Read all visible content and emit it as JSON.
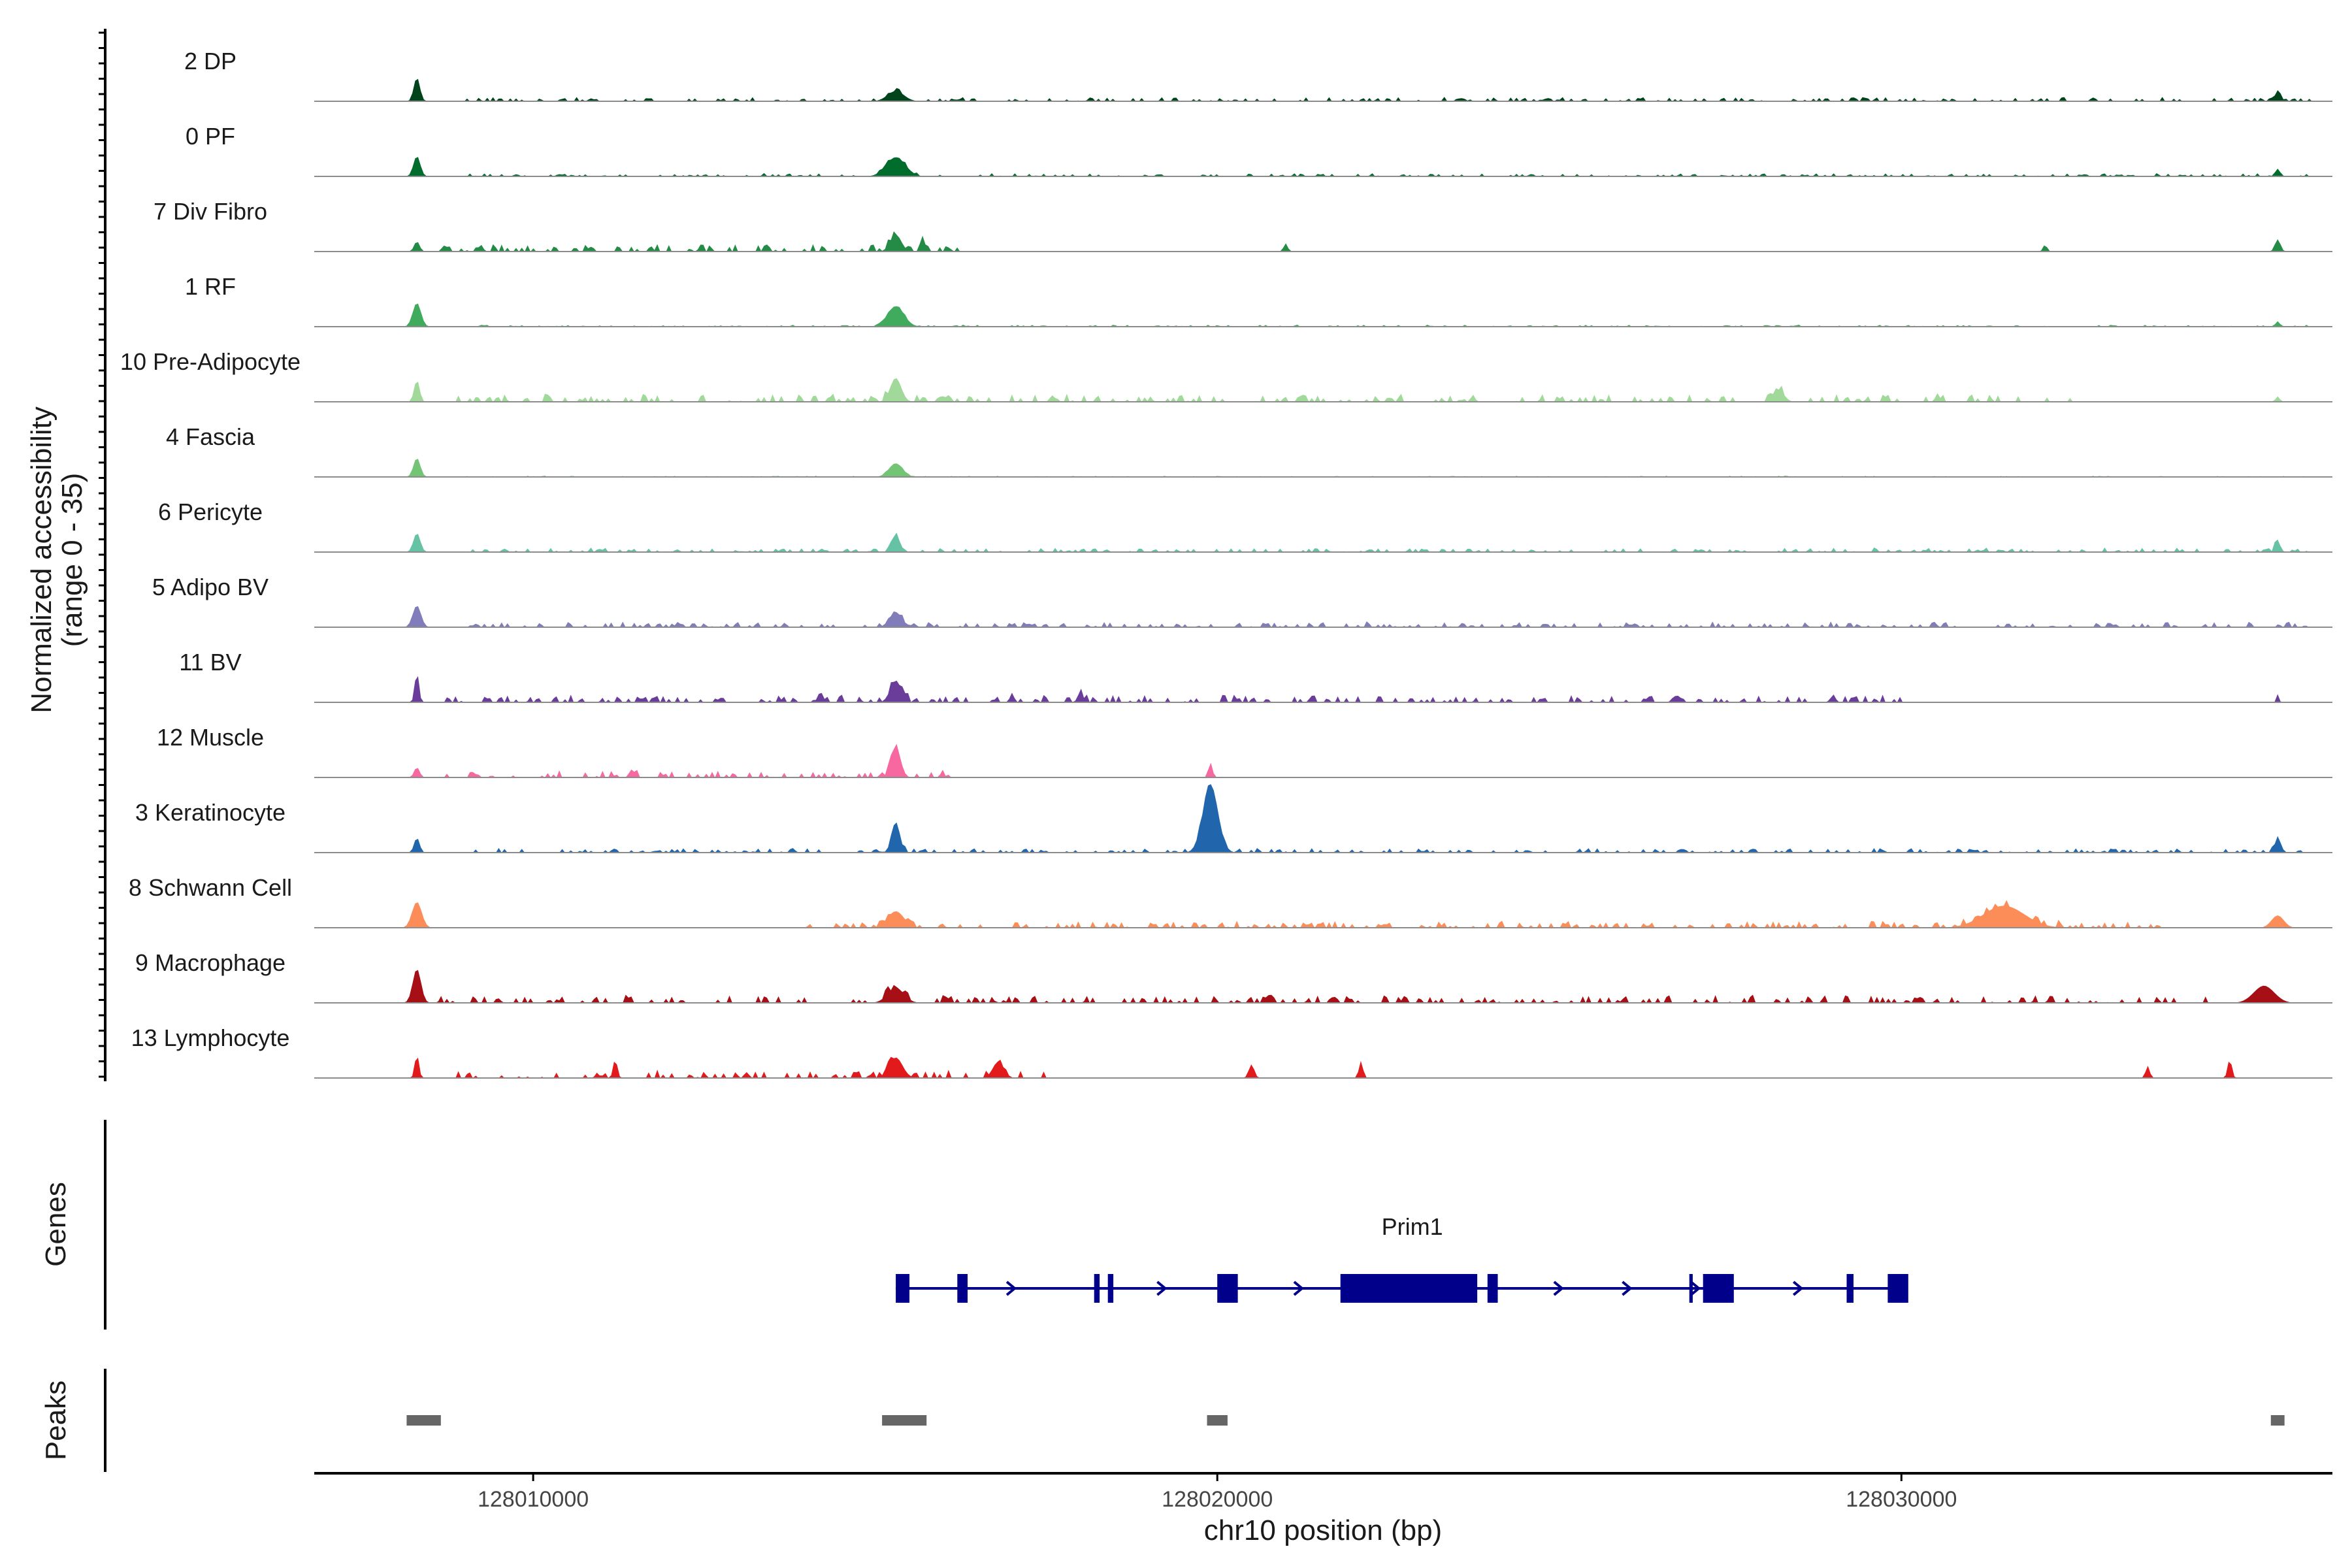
{
  "chart_data": {
    "type": "area",
    "title": "",
    "ylabel_line1": "Normalized accessibility",
    "ylabel_line2": "(range 0 - 35)",
    "ylim": [
      0,
      35
    ],
    "xlabel": "chr10 position (bp)",
    "xlim": [
      128006800,
      128036300
    ],
    "x_ticks": [
      128010000,
      128020000,
      128030000
    ],
    "x_tick_labels": [
      "128010000",
      "128020000",
      "128030000"
    ],
    "genes_label": "Genes",
    "peaks_label": "Peaks",
    "series": [
      {
        "name": "2 DP",
        "color": "#00441b",
        "peaks": [
          [
            128008300,
            35,
            45
          ],
          [
            128015300,
            15,
            120
          ],
          [
            128035500,
            12,
            50
          ]
        ],
        "noise": [
          128009000,
          128036000,
          4,
          2.5
        ]
      },
      {
        "name": "0 PF",
        "color": "#006d2c",
        "peaks": [
          [
            128008300,
            30,
            50
          ],
          [
            128015300,
            28,
            140
          ],
          [
            128035500,
            10,
            40
          ]
        ],
        "noise": [
          128009000,
          128036000,
          3,
          2
        ]
      },
      {
        "name": "7 Div Fibro",
        "color": "#238b45",
        "peaks": [
          [
            128008300,
            15,
            40
          ],
          [
            128015300,
            25,
            80
          ],
          [
            128015700,
            15,
            40
          ],
          [
            128013400,
            12,
            30
          ],
          [
            128021000,
            12,
            30
          ],
          [
            128032100,
            10,
            30
          ],
          [
            128035500,
            18,
            40
          ]
        ],
        "noise": [
          128008600,
          128016200,
          6,
          5
        ]
      },
      {
        "name": "1 RF",
        "color": "#41ab5d",
        "peaks": [
          [
            128008300,
            35,
            60
          ],
          [
            128015300,
            30,
            120
          ],
          [
            128035500,
            6,
            40
          ]
        ],
        "noise": [
          128009000,
          128036000,
          2,
          1
        ]
      },
      {
        "name": "10 Pre-Adipocyte",
        "color": "#a1d99b",
        "peaks": [
          [
            128008300,
            32,
            40
          ],
          [
            128015300,
            35,
            80
          ],
          [
            128028200,
            18,
            80
          ],
          [
            128035500,
            8,
            30
          ]
        ],
        "noise": [
          128008700,
          128032500,
          8,
          5
        ]
      },
      {
        "name": "4 Fascia",
        "color": "#74c476",
        "peaks": [
          [
            128008300,
            28,
            50
          ],
          [
            128015300,
            20,
            100
          ]
        ],
        "noise": [
          128009000,
          128036000,
          1,
          1
        ]
      },
      {
        "name": "6 Pericyte",
        "color": "#66c2a4",
        "peaks": [
          [
            128008300,
            28,
            50
          ],
          [
            128015300,
            25,
            60
          ],
          [
            128035500,
            15,
            40
          ]
        ],
        "noise": [
          128009000,
          128036000,
          4,
          3
        ]
      },
      {
        "name": "5 Adipo BV",
        "color": "#807dba",
        "peaks": [
          [
            128008300,
            32,
            60
          ],
          [
            128015300,
            22,
            90
          ]
        ],
        "noise": [
          128009000,
          128036000,
          5,
          4
        ]
      },
      {
        "name": "11 BV",
        "color": "#6a3d9a",
        "peaks": [
          [
            128008300,
            45,
            30
          ],
          [
            128015300,
            32,
            80
          ],
          [
            128014200,
            15,
            40
          ],
          [
            128017000,
            14,
            30
          ],
          [
            128018000,
            15,
            40
          ],
          [
            128029000,
            12,
            30
          ],
          [
            128035500,
            12,
            20
          ]
        ],
        "noise": [
          128008600,
          128030000,
          6,
          6
        ]
      },
      {
        "name": "12 Muscle",
        "color": "#f768a1",
        "peaks": [
          [
            128015300,
            45,
            70
          ],
          [
            128019900,
            22,
            30
          ],
          [
            128008300,
            15,
            40
          ]
        ],
        "noise": [
          128008600,
          128016200,
          8,
          5
        ]
      },
      {
        "name": "3 Keratinocyte",
        "color": "#2166ac",
        "peaks": [
          [
            128019900,
            100,
            110
          ],
          [
            128015300,
            45,
            60
          ],
          [
            128008300,
            22,
            40
          ],
          [
            128035500,
            18,
            50
          ]
        ],
        "noise": [
          128009000,
          128036000,
          4,
          3
        ]
      },
      {
        "name": "8 Schwann Cell",
        "color": "#fc8d59",
        "peaks": [
          [
            128008300,
            38,
            70
          ],
          [
            128015300,
            24,
            120
          ],
          [
            128031500,
            32,
            300
          ],
          [
            128035500,
            18,
            90
          ]
        ],
        "noise": [
          128014000,
          128034000,
          6,
          5
        ]
      },
      {
        "name": "9 Macrophage",
        "color": "#a50f15",
        "peaks": [
          [
            128008300,
            50,
            60
          ],
          [
            128015300,
            22,
            120
          ],
          [
            128035300,
            25,
            150
          ]
        ],
        "noise": [
          128008600,
          128034500,
          7,
          6
        ]
      },
      {
        "name": "13 Lymphocyte",
        "color": "#e31a1c",
        "peaks": [
          [
            128008300,
            35,
            30
          ],
          [
            128011200,
            28,
            30
          ],
          [
            128015300,
            30,
            100
          ],
          [
            128016800,
            24,
            80
          ],
          [
            128020500,
            20,
            40
          ],
          [
            128022100,
            25,
            30
          ],
          [
            128033600,
            18,
            30
          ],
          [
            128034800,
            28,
            30
          ]
        ],
        "noise": [
          128008600,
          128017500,
          8,
          6
        ]
      }
    ],
    "gene": {
      "name": "Prim1",
      "color": "#00008b",
      "start": 128015300,
      "end": 128030000,
      "exons": [
        [
          128015300,
          128015500
        ],
        [
          128016200,
          128016350
        ],
        [
          128018200,
          128018280
        ],
        [
          128018400,
          128018480
        ],
        [
          128020000,
          128020300
        ],
        [
          128021800,
          128023800
        ],
        [
          128023950,
          128024100
        ],
        [
          128026900,
          128026950
        ],
        [
          128027100,
          128027550
        ],
        [
          128029200,
          128029300
        ],
        [
          128029800,
          128030100
        ]
      ],
      "arrows": [
        128015400,
        128017000,
        128019200,
        128021200,
        128025000,
        128026000,
        128027000,
        128028500
      ]
    },
    "peaks": [
      [
        128008150,
        128008650
      ],
      [
        128015100,
        128015750
      ],
      [
        128019850,
        128020150
      ],
      [
        128035400,
        128035600
      ]
    ],
    "peak_color": "#666666"
  }
}
